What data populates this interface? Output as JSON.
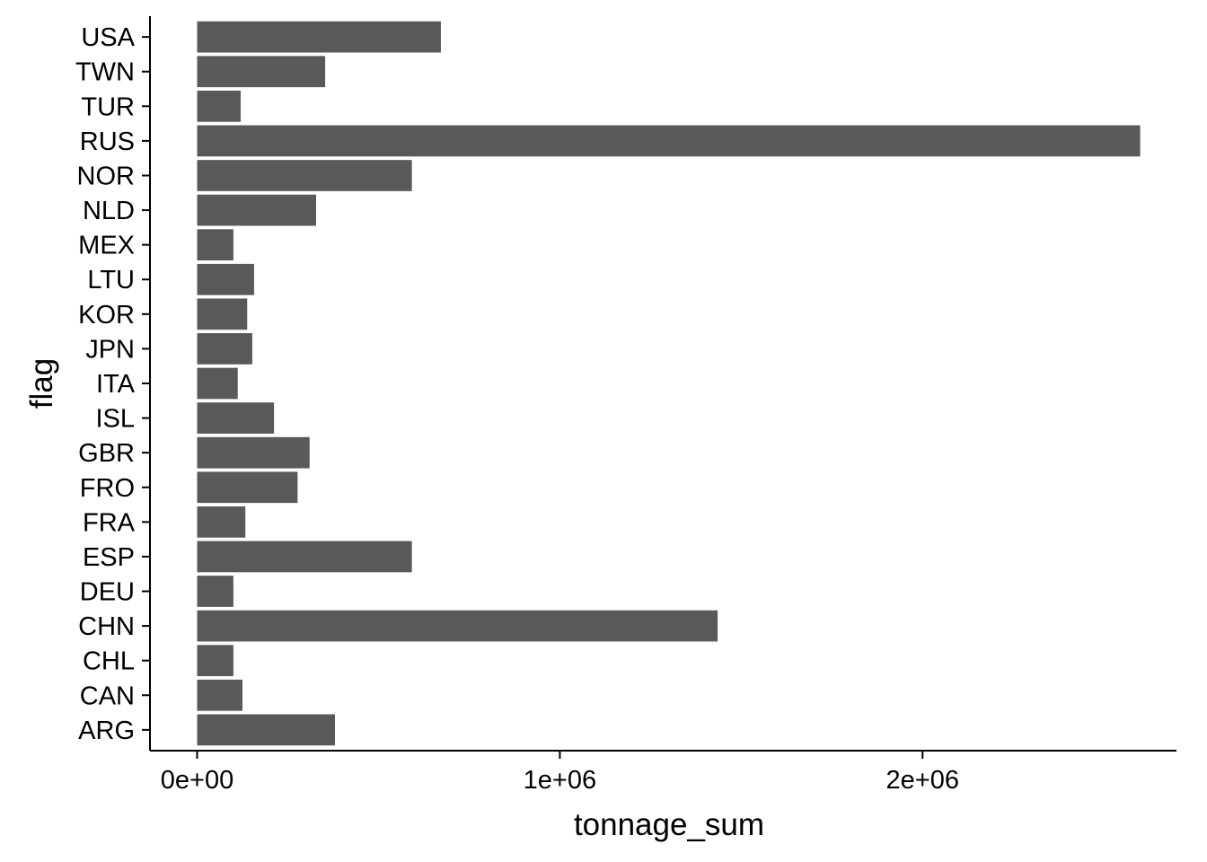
{
  "chart_data": {
    "type": "bar",
    "orientation": "horizontal",
    "categories": [
      "ARG",
      "CAN",
      "CHL",
      "CHN",
      "DEU",
      "ESP",
      "FRA",
      "FRO",
      "GBR",
      "ISL",
      "ITA",
      "JPN",
      "KOR",
      "LTU",
      "MEX",
      "NLD",
      "NOR",
      "RUS",
      "TUR",
      "TWN",
      "USA"
    ],
    "values": [
      380000,
      125000,
      100000,
      1435000,
      100000,
      592000,
      133000,
      277000,
      310000,
      212000,
      112000,
      152000,
      138000,
      157000,
      100000,
      328000,
      592000,
      2600000,
      120000,
      353000,
      672000
    ],
    "xlabel": "tonnage_sum",
    "ylabel": "flag",
    "xlim": [
      -130000,
      2700000
    ],
    "x_ticks": [
      0,
      1000000,
      2000000
    ],
    "x_tick_labels": [
      "0e+00",
      "1e+06",
      "2e+06"
    ],
    "bar_color": "#595959",
    "grid": false,
    "legend": "none"
  }
}
